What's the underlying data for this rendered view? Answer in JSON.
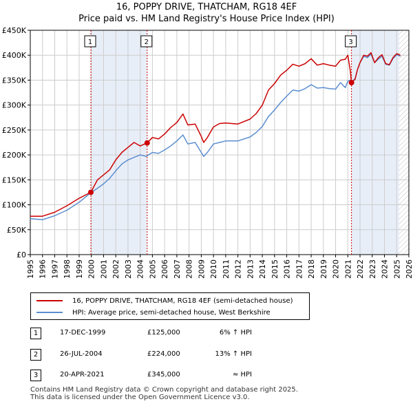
{
  "title_line1": "16, POPPY DRIVE, THATCHAM, RG18 4EF",
  "title_line2": "Price paid vs. HM Land Registry's House Price Index (HPI)",
  "colors": {
    "property": "#cc0000",
    "hpi": "#5b8ed0",
    "shade": "#e8eef8",
    "grid": "#cccccc"
  },
  "chart_data": {
    "type": "line",
    "xlim": [
      1995,
      2026
    ],
    "ylim": [
      0,
      450000
    ],
    "x_ticks": [
      "1995",
      "1996",
      "1997",
      "1998",
      "1999",
      "2000",
      "2001",
      "2002",
      "2003",
      "2004",
      "2005",
      "2006",
      "2007",
      "2008",
      "2009",
      "2010",
      "2011",
      "2012",
      "2013",
      "2014",
      "2015",
      "2016",
      "2017",
      "2018",
      "2019",
      "2020",
      "2021",
      "2022",
      "2023",
      "2024",
      "2025",
      "2026"
    ],
    "y_ticks": [
      {
        "value": 0,
        "label": "£0"
      },
      {
        "value": 50000,
        "label": "£50K"
      },
      {
        "value": 100000,
        "label": "£100K"
      },
      {
        "value": 150000,
        "label": "£150K"
      },
      {
        "value": 200000,
        "label": "£200K"
      },
      {
        "value": 250000,
        "label": "£250K"
      },
      {
        "value": 300000,
        "label": "£300K"
      },
      {
        "value": 350000,
        "label": "£350K"
      },
      {
        "value": 400000,
        "label": "£400K"
      },
      {
        "value": 450000,
        "label": "£450K"
      }
    ],
    "shaded_ranges": [
      [
        1999.96,
        2004.57
      ],
      [
        2021.3,
        2025.2
      ]
    ],
    "series": [
      {
        "name": "16, POPPY DRIVE, THATCHAM, RG18 4EF (semi-detached house)",
        "x": [
          1995,
          1996,
          1997,
          1998,
          1999,
          1999.96,
          2000.5,
          2001,
          2001.5,
          2002,
          2002.5,
          2003,
          2003.5,
          2004,
          2004.57,
          2005,
          2005.5,
          2006,
          2006.5,
          2007,
          2007.5,
          2007.9,
          2008.5,
          2009,
          2009.2,
          2009.5,
          2010,
          2010.5,
          2011,
          2012,
          2013,
          2013.5,
          2014,
          2014.5,
          2015,
          2015.5,
          2016,
          2016.5,
          2017,
          2017.5,
          2018,
          2018.5,
          2019,
          2019.5,
          2020,
          2020.4,
          2020.8,
          2021,
          2021.2,
          2021.3,
          2021.6,
          2021.8,
          2022,
          2022.3,
          2022.6,
          2022.9,
          2023.2,
          2023.5,
          2023.8,
          2024.1,
          2024.4,
          2024.7,
          2025,
          2025.3
        ],
        "values": [
          77000,
          77000,
          85000,
          98000,
          113000,
          125000,
          150000,
          160000,
          170000,
          190000,
          205000,
          215000,
          225000,
          218000,
          224000,
          235000,
          232000,
          242000,
          255000,
          265000,
          282000,
          260000,
          262000,
          237000,
          225000,
          235000,
          256000,
          263000,
          264000,
          262000,
          272000,
          283000,
          300000,
          330000,
          343000,
          360000,
          370000,
          382000,
          378000,
          383000,
          393000,
          380000,
          383000,
          380000,
          378000,
          390000,
          392000,
          400000,
          370000,
          345000,
          352000,
          372000,
          385000,
          400000,
          398000,
          405000,
          385000,
          395000,
          401000,
          383000,
          381000,
          395000,
          403000,
          400000
        ]
      },
      {
        "name": "HPI: Average price, semi-detached house, West Berkshire",
        "x": [
          1995,
          1996,
          1997,
          1998,
          1999,
          2000,
          2000.5,
          2001,
          2001.5,
          2002,
          2002.5,
          2003,
          2003.5,
          2004,
          2004.5,
          2005,
          2005.5,
          2006,
          2006.5,
          2007,
          2007.5,
          2007.9,
          2008.5,
          2009,
          2009.2,
          2009.5,
          2010,
          2010.5,
          2011,
          2012,
          2013,
          2013.5,
          2014,
          2014.5,
          2015,
          2015.5,
          2016,
          2016.5,
          2017,
          2017.5,
          2018,
          2018.5,
          2019,
          2019.5,
          2020,
          2020.4,
          2020.8,
          2021,
          2021.2,
          2021.3,
          2021.6,
          2021.8,
          2022,
          2022.3,
          2022.6,
          2022.9,
          2023.2,
          2023.5,
          2023.8,
          2024.1,
          2024.4,
          2024.7,
          2025,
          2025.3
        ],
        "values": [
          72000,
          70000,
          78000,
          89000,
          105000,
          125000,
          133000,
          142000,
          153000,
          168000,
          182000,
          190000,
          195000,
          200000,
          197000,
          205000,
          203000,
          210000,
          218000,
          228000,
          240000,
          222000,
          225000,
          205000,
          197000,
          205000,
          222000,
          225000,
          228000,
          228000,
          236000,
          245000,
          257000,
          277000,
          290000,
          305000,
          318000,
          330000,
          328000,
          333000,
          341000,
          334000,
          335000,
          333000,
          332000,
          345000,
          335000,
          348000,
          350000,
          346000,
          353000,
          372000,
          385000,
          398000,
          395000,
          402000,
          385000,
          392000,
          398000,
          382000,
          380000,
          393000,
          401000,
          398000
        ]
      }
    ],
    "sale_markers": [
      {
        "label": "1",
        "x": 1999.96,
        "value": 125000
      },
      {
        "label": "2",
        "x": 2004.57,
        "value": 224000
      },
      {
        "label": "3",
        "x": 2021.3,
        "value": 345000
      }
    ],
    "legend_position": "below"
  },
  "legend": {
    "property_label": "16, POPPY DRIVE, THATCHAM, RG18 4EF (semi-detached house)",
    "hpi_label": "HPI: Average price, semi-detached house, West Berkshire"
  },
  "transactions": [
    {
      "num": "1",
      "date": "17-DEC-1999",
      "price": "£125,000",
      "hpi": "6% ↑ HPI"
    },
    {
      "num": "2",
      "date": "26-JUL-2004",
      "price": "£224,000",
      "hpi": "13% ↑ HPI"
    },
    {
      "num": "3",
      "date": "20-APR-2021",
      "price": "£345,000",
      "hpi": "≈ HPI"
    }
  ],
  "footer": {
    "line1": "Contains HM Land Registry data © Crown copyright and database right 2025.",
    "line2": "This data is licensed under the Open Government Licence v3.0."
  }
}
